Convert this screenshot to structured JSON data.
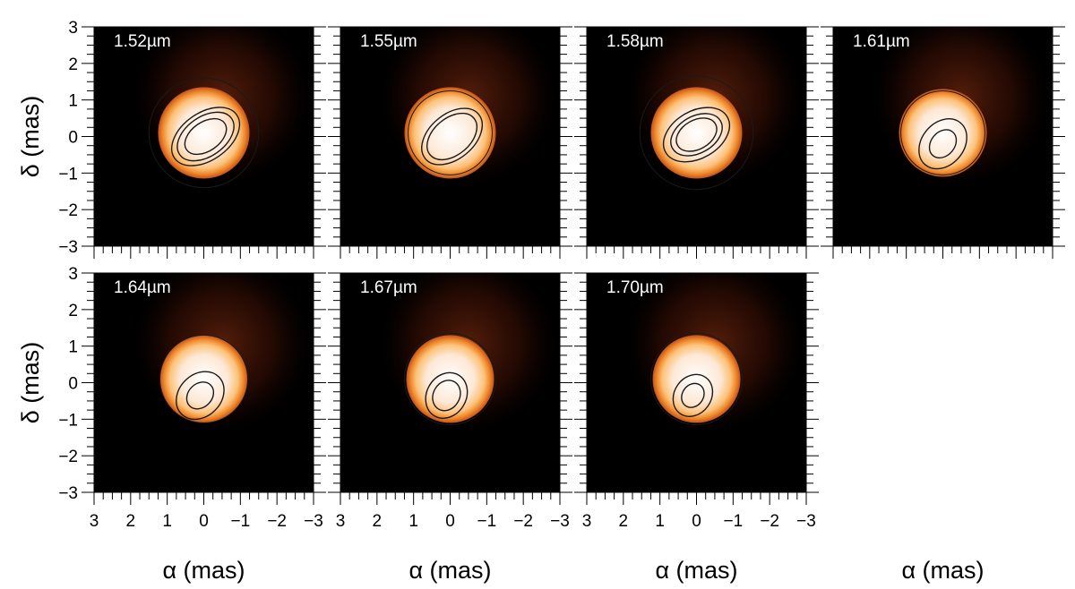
{
  "chart_data": {
    "type": "heatmap",
    "grid": false,
    "colormap": [
      "#000000",
      "#3a0b05",
      "#7a2410",
      "#c4531c",
      "#f08a2c",
      "#fcc27a",
      "#fde8d6",
      "#ffffff"
    ],
    "xlabel": "α (mas)",
    "ylabel": "δ (mas)",
    "xlim": [
      3,
      -3
    ],
    "ylim": [
      -3,
      3
    ],
    "x_ticks": [
      3,
      2,
      1,
      0,
      -1,
      -2,
      -3
    ],
    "y_ticks": [
      3,
      2,
      1,
      0,
      -1,
      -2,
      -3
    ],
    "x_tick_labels": [
      "3",
      "2",
      "1",
      "0",
      "−1",
      "−2",
      "−3"
    ],
    "y_tick_labels": [
      "3",
      "2",
      "1",
      "0",
      "−1",
      "−2",
      "−3"
    ],
    "panels": [
      {
        "label": "1.52µm",
        "wavelength_um": 1.52,
        "star_center": [
          0.0,
          0.1
        ],
        "star_radius": 1.25,
        "peak_center": [
          -0.05,
          0.0
        ],
        "contour_radii": [
          1.5,
          0.9,
          0.75,
          0.55
        ],
        "contour_elongation": 1.6,
        "contour_angle_deg": 55
      },
      {
        "label": "1.55µm",
        "wavelength_um": 1.55,
        "star_center": [
          0.0,
          0.1
        ],
        "star_radius": 1.25,
        "peak_center": [
          -0.05,
          0.0
        ],
        "contour_radii": [
          1.15,
          0.85,
          0.7
        ],
        "contour_elongation": 1.55,
        "contour_angle_deg": 50
      },
      {
        "label": "1.58µm",
        "wavelength_um": 1.58,
        "star_center": [
          0.0,
          0.1
        ],
        "star_radius": 1.25,
        "peak_center": [
          0.0,
          0.05
        ],
        "contour_radii": [
          1.55,
          0.9,
          0.7,
          0.55
        ],
        "contour_elongation": 1.5,
        "contour_angle_deg": 60
      },
      {
        "label": "1.61µm",
        "wavelength_um": 1.61,
        "star_center": [
          0.0,
          0.1
        ],
        "star_radius": 1.2,
        "peak_center": [
          0.0,
          -0.2
        ],
        "contour_radii": [
          1.15,
          0.8,
          0.45
        ],
        "contour_elongation": 1.3,
        "contour_angle_deg": 40
      },
      {
        "label": "1.64µm",
        "wavelength_um": 1.64,
        "star_center": [
          0.0,
          0.1
        ],
        "star_radius": 1.2,
        "peak_center": [
          0.1,
          -0.35
        ],
        "contour_radii": [
          1.2,
          0.8,
          0.45
        ],
        "contour_elongation": 1.25,
        "contour_angle_deg": 45
      },
      {
        "label": "1.67µm",
        "wavelength_um": 1.67,
        "star_center": [
          0.0,
          0.1
        ],
        "star_radius": 1.2,
        "peak_center": [
          0.1,
          -0.35
        ],
        "contour_radii": [
          1.25,
          0.75,
          0.5
        ],
        "contour_elongation": 1.2,
        "contour_angle_deg": 30
      },
      {
        "label": "1.70µm",
        "wavelength_um": 1.7,
        "star_center": [
          0.0,
          0.1
        ],
        "star_radius": 1.2,
        "peak_center": [
          0.1,
          -0.35
        ],
        "contour_radii": [
          1.25,
          0.7,
          0.4
        ],
        "contour_elongation": 1.2,
        "contour_angle_deg": 35
      }
    ]
  }
}
